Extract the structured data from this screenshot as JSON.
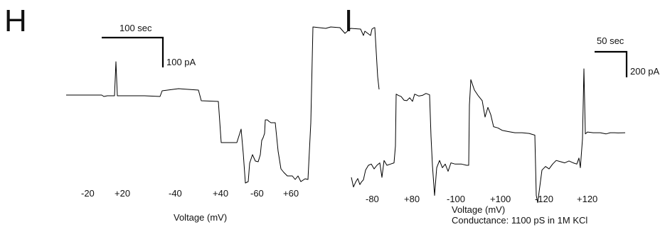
{
  "chart_data": [
    {
      "type": "line",
      "panel": "H",
      "xlabel": "Voltage (mV)",
      "segments": [
        "-20",
        "+20",
        "-40",
        "+40",
        "-60",
        "+60"
      ],
      "scalebar": {
        "time": "100 sec",
        "current": "100 pA"
      },
      "trace": [
        [
          0,
          14
        ],
        [
          50,
          14
        ],
        [
          53,
          12
        ],
        [
          58,
          13
        ],
        [
          68,
          13
        ],
        [
          70,
          61
        ],
        [
          72,
          13
        ],
        [
          110,
          13
        ],
        [
          132,
          12
        ],
        [
          135,
          20
        ],
        [
          158,
          23
        ],
        [
          186,
          21
        ],
        [
          190,
          6
        ],
        [
          214,
          5
        ],
        [
          218,
          -53
        ],
        [
          240,
          -53
        ],
        [
          246,
          -34
        ],
        [
          249,
          -68
        ],
        [
          252,
          -110
        ],
        [
          256,
          -108
        ],
        [
          258,
          -82
        ],
        [
          262,
          -70
        ],
        [
          266,
          -79
        ],
        [
          270,
          -80
        ],
        [
          273,
          -70
        ],
        [
          275,
          -50
        ],
        [
          277,
          -46
        ],
        [
          279,
          -40
        ],
        [
          280,
          -21
        ],
        [
          283,
          -21
        ],
        [
          285,
          -23
        ],
        [
          288,
          -25
        ],
        [
          294,
          -25
        ],
        [
          298,
          -65
        ],
        [
          302,
          -90
        ],
        [
          306,
          -95
        ],
        [
          311,
          -100
        ],
        [
          318,
          -100
        ],
        [
          322,
          -105
        ],
        [
          326,
          -100
        ],
        [
          330,
          -108
        ],
        [
          336,
          -104
        ],
        [
          340,
          -105
        ],
        [
          344,
          -25
        ],
        [
          347,
          110
        ],
        [
          365,
          108
        ],
        [
          372,
          110
        ],
        [
          385,
          109
        ],
        [
          392,
          101
        ],
        [
          400,
          108
        ],
        [
          414,
          107
        ],
        [
          418,
          98
        ],
        [
          420,
          104
        ],
        [
          428,
          98
        ],
        [
          430,
          107
        ],
        [
          433,
          109
        ],
        [
          434,
          109
        ],
        [
          438,
          40
        ],
        [
          440,
          22
        ]
      ]
    },
    {
      "type": "line",
      "panel": "I",
      "xlabel": "Voltage (mV)",
      "caption": "Conductance: 1100 pS in 1M KCl",
      "segments": [
        "-80",
        "+80",
        "-100",
        "+100",
        "-120",
        "+120"
      ],
      "scalebar": {
        "time": "50 sec",
        "current": "200 pA"
      },
      "trace": [
        [
          0,
          -200
        ],
        [
          3,
          -240
        ],
        [
          6,
          -220
        ],
        [
          9,
          -205
        ],
        [
          12,
          -230
        ],
        [
          14,
          -220
        ],
        [
          17,
          -210
        ],
        [
          20,
          -170
        ],
        [
          24,
          -150
        ],
        [
          28,
          -145
        ],
        [
          32,
          -165
        ],
        [
          36,
          -150
        ],
        [
          40,
          -140
        ],
        [
          43,
          -200
        ],
        [
          46,
          -130
        ],
        [
          50,
          -150
        ],
        [
          55,
          -145
        ],
        [
          60,
          -140
        ],
        [
          62,
          -70
        ],
        [
          63,
          145
        ],
        [
          66,
          140
        ],
        [
          70,
          135
        ],
        [
          74,
          120
        ],
        [
          78,
          118
        ],
        [
          82,
          130
        ],
        [
          86,
          115
        ],
        [
          89,
          145
        ],
        [
          95,
          137
        ],
        [
          100,
          140
        ],
        [
          105,
          148
        ],
        [
          110,
          142
        ],
        [
          112,
          -30
        ],
        [
          114,
          -150
        ],
        [
          117,
          -275
        ],
        [
          120,
          -160
        ],
        [
          124,
          -130
        ],
        [
          128,
          -160
        ],
        [
          132,
          -145
        ],
        [
          136,
          -175
        ],
        [
          140,
          -140
        ],
        [
          146,
          -145
        ],
        [
          155,
          -145
        ],
        [
          162,
          -150
        ],
        [
          165,
          -150
        ],
        [
          166,
          100
        ],
        [
          168,
          205
        ],
        [
          173,
          162
        ],
        [
          178,
          140
        ],
        [
          184,
          118
        ],
        [
          188,
          50
        ],
        [
          192,
          90
        ],
        [
          196,
          60
        ],
        [
          200,
          10
        ],
        [
          206,
          5
        ],
        [
          212,
          -5
        ],
        [
          220,
          -10
        ],
        [
          230,
          -15
        ],
        [
          240,
          -15
        ],
        [
          250,
          -18
        ],
        [
          258,
          -25
        ],
        [
          260,
          -275
        ],
        [
          262,
          -305
        ],
        [
          264,
          -260
        ],
        [
          268,
          -170
        ],
        [
          273,
          -155
        ],
        [
          278,
          -165
        ],
        [
          283,
          -145
        ],
        [
          288,
          -130
        ],
        [
          294,
          -135
        ],
        [
          300,
          -140
        ],
        [
          306,
          -132
        ],
        [
          312,
          -140
        ],
        [
          317,
          -145
        ],
        [
          320,
          -120
        ],
        [
          322,
          -160
        ],
        [
          325,
          -40
        ],
        [
          327,
          250
        ],
        [
          329,
          -20
        ],
        [
          332,
          -12
        ],
        [
          340,
          -15
        ],
        [
          350,
          -15
        ],
        [
          358,
          -20
        ],
        [
          364,
          -15
        ],
        [
          370,
          -15
        ],
        [
          375,
          -16
        ],
        [
          385,
          -15
        ]
      ]
    }
  ]
}
